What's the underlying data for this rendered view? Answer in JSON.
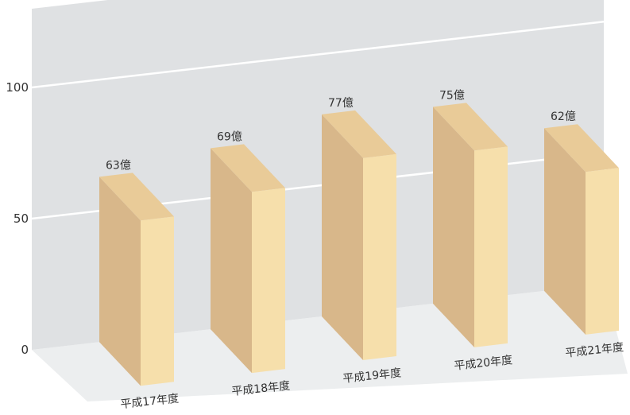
{
  "chart_data": {
    "type": "bar",
    "title": "",
    "xlabel": "",
    "ylabel": "",
    "categories": [
      "平成17年度",
      "平成18年度",
      "平成19年度",
      "平成20年度",
      "平成21年度"
    ],
    "values": [
      63,
      69,
      77,
      75,
      62
    ],
    "value_labels": [
      "63億",
      "69億",
      "77億",
      "75億",
      "62億"
    ],
    "yticks": [
      "0",
      "50",
      "100"
    ],
    "ylim": [
      0,
      100
    ],
    "grid": true,
    "style": "3d",
    "colors": {
      "bar_front": "#f6dfab",
      "bar_side": "#d8b78a",
      "bar_top": "#e9cb98",
      "wall": "#dfe1e3",
      "floor": "#eceeef",
      "gridline": "#ffffff"
    }
  }
}
